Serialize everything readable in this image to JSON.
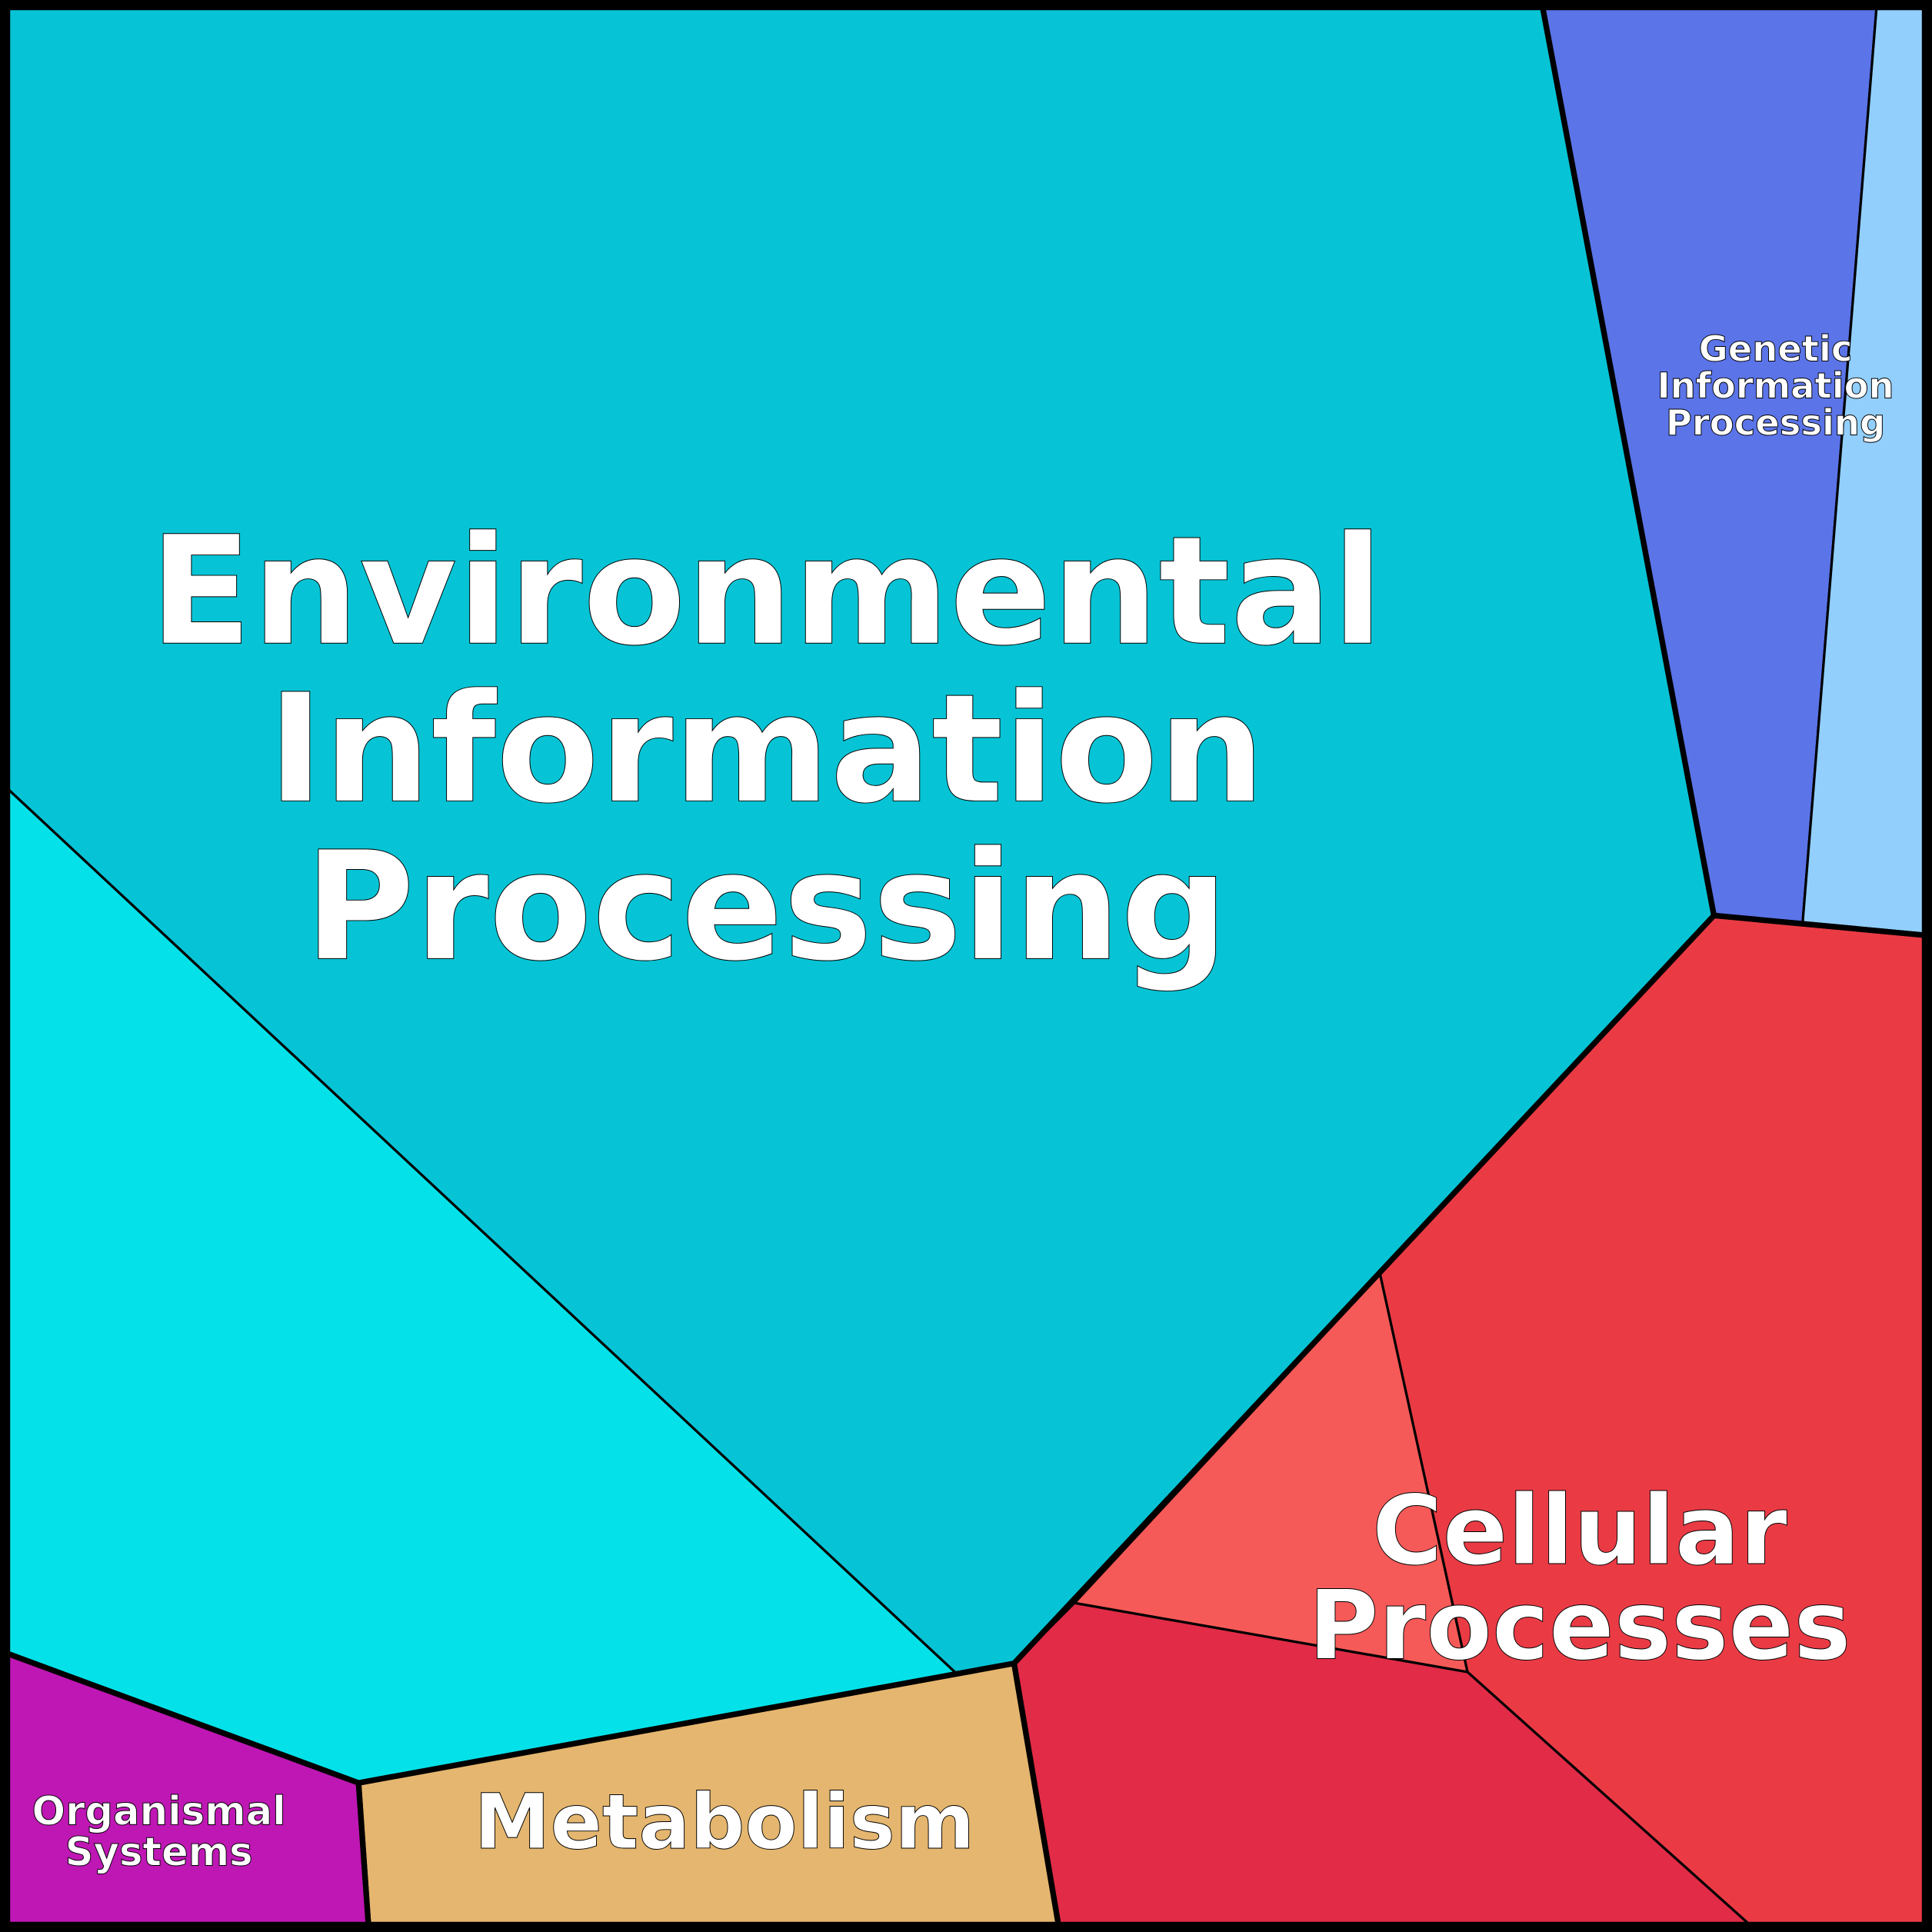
{
  "chart_data": {
    "type": "voronoi-treemap",
    "groups": [
      {
        "name": "Environmental Information Processing",
        "lines": [
          "Environmental",
          "Information",
          "Processing"
        ],
        "colors": [
          "#06C4D5",
          "#05E1E8"
        ]
      },
      {
        "name": "Genetic Information Processing",
        "lines": [
          "Genetic",
          "Information",
          "Processing"
        ],
        "colors": [
          "#5B74E8",
          "#92CFFD"
        ]
      },
      {
        "name": "Cellular Processes",
        "lines": [
          "Cellular",
          "Processes"
        ],
        "colors": [
          "#EA3B45",
          "#F65A58",
          "#E12B47"
        ]
      },
      {
        "name": "Metabolism",
        "lines": [
          "Metabolism"
        ],
        "colors": [
          "#E5B66F"
        ]
      },
      {
        "name": "Organismal Systems",
        "lines": [
          "Organismal",
          "Systems"
        ],
        "colors": [
          "#BE17B4"
        ]
      }
    ],
    "border_color": "#000000",
    "label_color": "#FFFFFF"
  }
}
